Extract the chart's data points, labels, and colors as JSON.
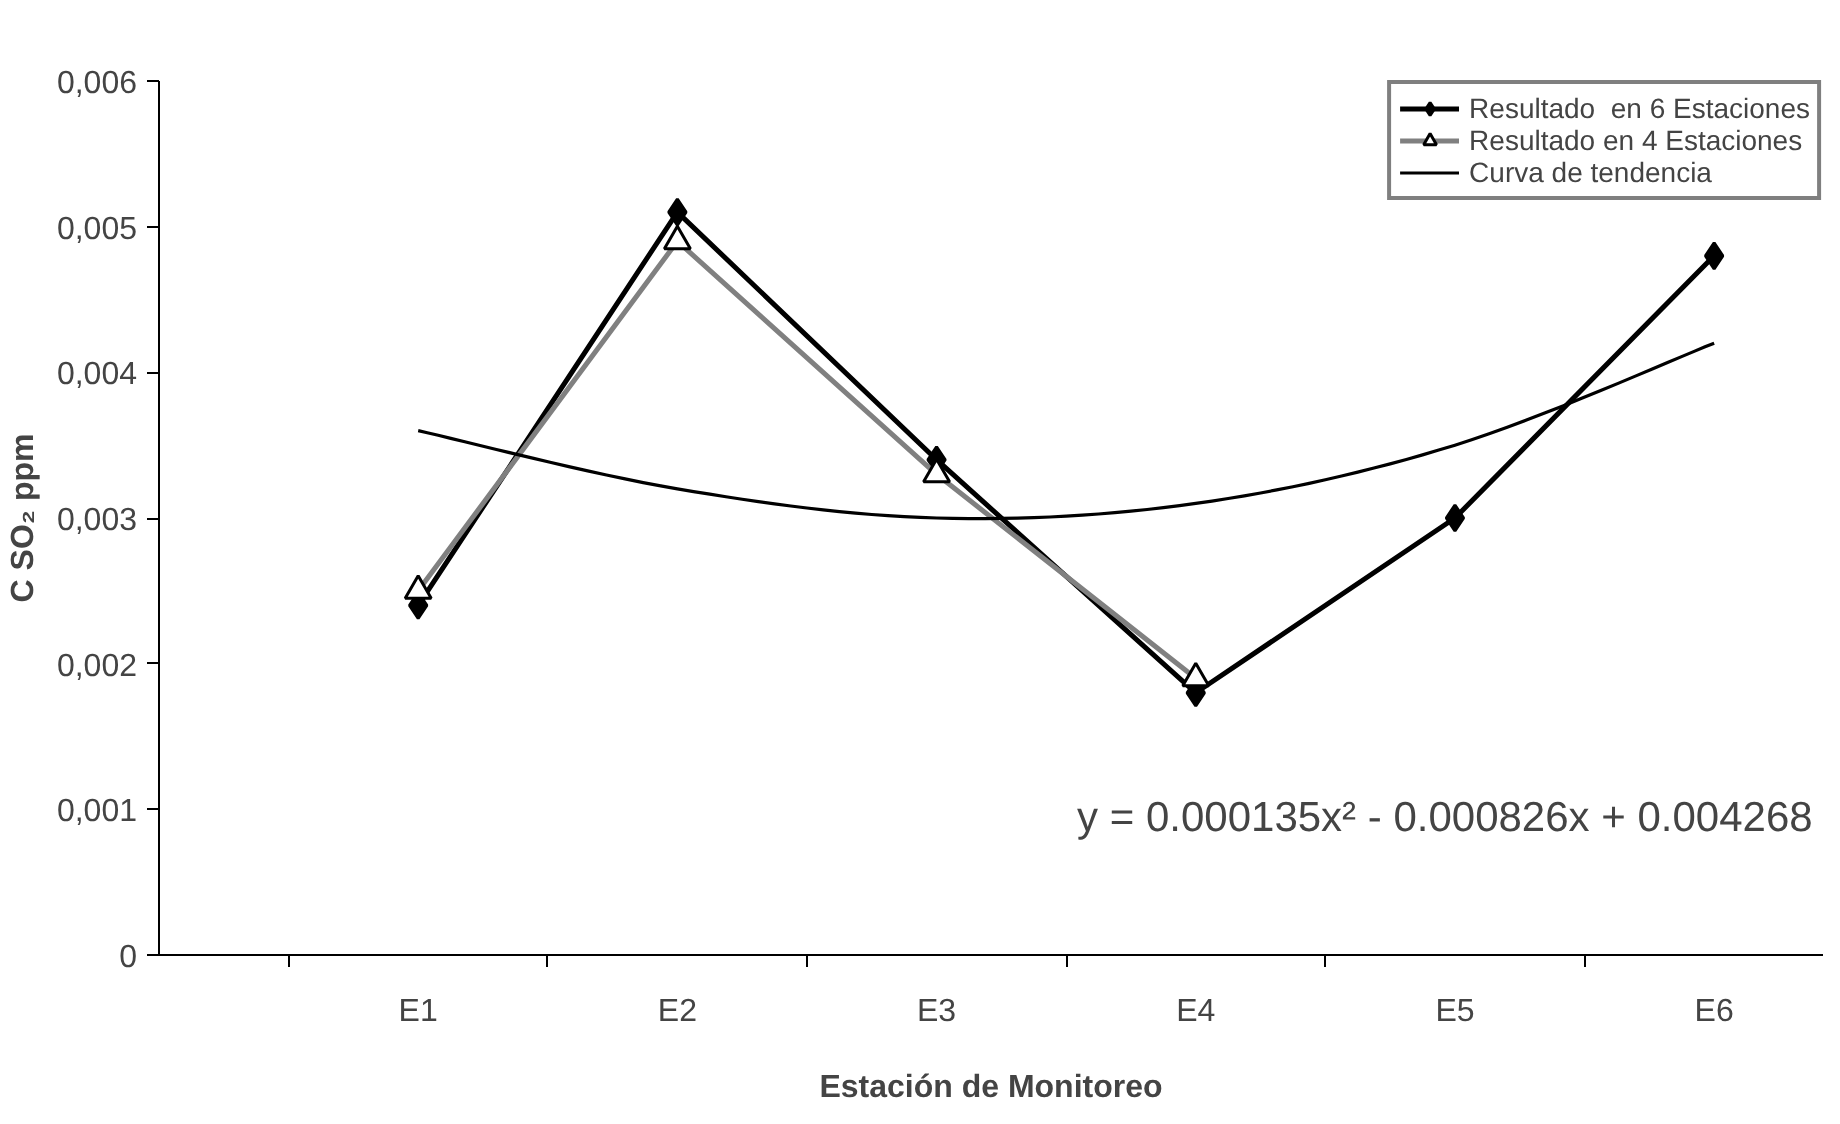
{
  "chart_data": {
    "type": "line",
    "xlabel": "Estación de Monitoreo",
    "ylabel": "C SO₂ ppm",
    "categories": [
      "E1",
      "E2",
      "E3",
      "E4",
      "E5",
      "E6"
    ],
    "series": [
      {
        "name": "Resultado  en 6 Estaciones",
        "color": "#000000",
        "values": [
          0.0024,
          0.0051,
          0.0034,
          0.0018,
          0.003,
          0.0048
        ],
        "marker": "diamond"
      },
      {
        "name": "Resultado en 4 Estaciones",
        "color": "#808080",
        "values": [
          0.0025,
          0.0049,
          0.0033,
          0.0019,
          null,
          null
        ],
        "marker": "triangle"
      },
      {
        "name": "Curva de tendencia",
        "color": "#000000",
        "values": [
          0.0036,
          0.0032,
          0.003,
          0.0031,
          0.0035,
          0.0042
        ],
        "marker": "none"
      }
    ],
    "ylim": [
      0,
      0.006
    ],
    "yticks": [
      0,
      {
        "value": 0.001,
        "label": "0,001"
      },
      {
        "value": 0.002,
        "label": "0,002"
      },
      {
        "value": 0.003,
        "label": "0,003"
      },
      {
        "value": 0.004,
        "label": "0,004"
      },
      {
        "value": 0.005,
        "label": "0,005"
      },
      {
        "value": 0.006,
        "label": "0,006"
      }
    ],
    "annotations": [
      "y = 0.000135x² - 0.000826x + 0.004268"
    ],
    "grid": false,
    "legend": "top right"
  }
}
